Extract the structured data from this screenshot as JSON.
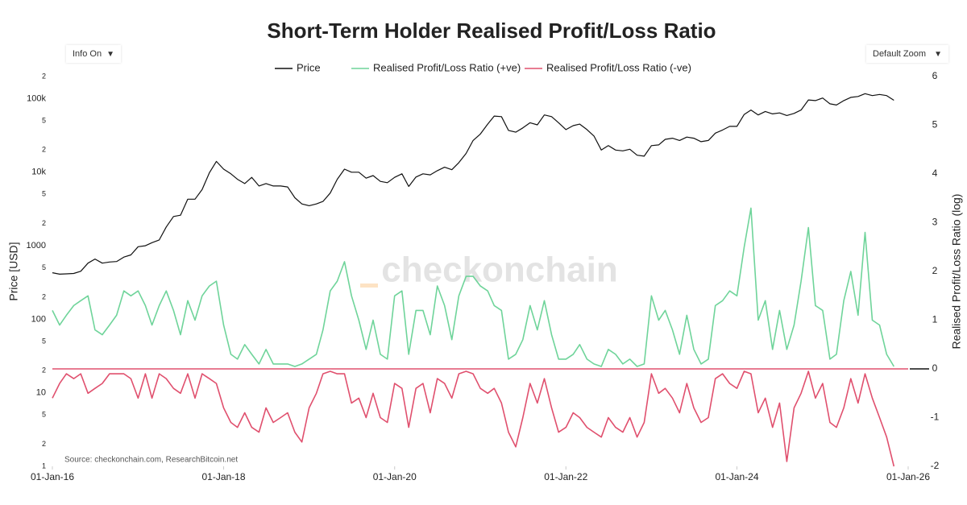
{
  "chart_data": {
    "type": "line",
    "title": "Short-Term Holder Realised Profit/Loss Ratio",
    "controls": {
      "info": "Info On",
      "zoom": "Default Zoom"
    },
    "ylabel": "Price [USD]",
    "y2label": "Realised Profit/Loss Ratio (log)",
    "source": "Source: checkonchain.com, ResearchBitcoin.net",
    "watermark": "checkonchain",
    "ylog": true,
    "xlim": [
      "2016-01-01",
      "2026-01-01"
    ],
    "xticks": [
      {
        "value": "2016-01-01",
        "label": "01-Jan-16"
      },
      {
        "value": "2018-01-01",
        "label": "01-Jan-18"
      },
      {
        "value": "2020-01-01",
        "label": "01-Jan-20"
      },
      {
        "value": "2022-01-01",
        "label": "01-Jan-22"
      },
      {
        "value": "2024-01-01",
        "label": "01-Jan-24"
      },
      {
        "value": "2026-01-01",
        "label": "01-Jan-26"
      }
    ],
    "ylim": [
      1,
      200000
    ],
    "yticks": [
      1,
      2,
      5,
      10,
      {
        "value": 20,
        "label": "2"
      },
      {
        "value": 50,
        "label": "5"
      },
      100,
      {
        "value": 200,
        "label": "2"
      },
      {
        "value": 500,
        "label": "5"
      },
      1000,
      {
        "value": 2000,
        "label": "2"
      },
      {
        "value": 5000,
        "label": "5"
      },
      {
        "value": 10000,
        "label": "10k"
      },
      {
        "value": 20000,
        "label": "2"
      },
      {
        "value": 50000,
        "label": "5"
      },
      {
        "value": 100000,
        "label": "100k"
      },
      {
        "value": 200000,
        "label": "2"
      }
    ],
    "y2lim": [
      -2,
      6
    ],
    "y2ticks": [
      -2,
      -1,
      0,
      1,
      2,
      3,
      4,
      5,
      6
    ],
    "x": [
      "2016-01-01",
      "2016-02-01",
      "2016-03-01",
      "2016-04-01",
      "2016-05-01",
      "2016-06-01",
      "2016-07-01",
      "2016-08-01",
      "2016-09-01",
      "2016-10-01",
      "2016-11-01",
      "2016-12-01",
      "2017-01-01",
      "2017-02-01",
      "2017-03-01",
      "2017-04-01",
      "2017-05-01",
      "2017-06-01",
      "2017-07-01",
      "2017-08-01",
      "2017-09-01",
      "2017-10-01",
      "2017-11-01",
      "2017-12-01",
      "2018-01-01",
      "2018-02-01",
      "2018-03-01",
      "2018-04-01",
      "2018-05-01",
      "2018-06-01",
      "2018-07-01",
      "2018-08-01",
      "2018-09-01",
      "2018-10-01",
      "2018-11-01",
      "2018-12-01",
      "2019-01-01",
      "2019-02-01",
      "2019-03-01",
      "2019-04-01",
      "2019-05-01",
      "2019-06-01",
      "2019-07-01",
      "2019-08-01",
      "2019-09-01",
      "2019-10-01",
      "2019-11-01",
      "2019-12-01",
      "2020-01-01",
      "2020-02-01",
      "2020-03-01",
      "2020-04-01",
      "2020-05-01",
      "2020-06-01",
      "2020-07-01",
      "2020-08-01",
      "2020-09-01",
      "2020-10-01",
      "2020-11-01",
      "2020-12-01",
      "2021-01-01",
      "2021-02-01",
      "2021-03-01",
      "2021-04-01",
      "2021-05-01",
      "2021-06-01",
      "2021-07-01",
      "2021-08-01",
      "2021-09-01",
      "2021-10-01",
      "2021-11-01",
      "2021-12-01",
      "2022-01-01",
      "2022-02-01",
      "2022-03-01",
      "2022-04-01",
      "2022-05-01",
      "2022-06-01",
      "2022-07-01",
      "2022-08-01",
      "2022-09-01",
      "2022-10-01",
      "2022-11-01",
      "2022-12-01",
      "2023-01-01",
      "2023-02-01",
      "2023-03-01",
      "2023-04-01",
      "2023-05-01",
      "2023-06-01",
      "2023-07-01",
      "2023-08-01",
      "2023-09-01",
      "2023-10-01",
      "2023-11-01",
      "2023-12-01",
      "2024-01-01",
      "2024-02-01",
      "2024-03-01",
      "2024-04-01",
      "2024-05-01",
      "2024-06-01",
      "2024-07-01",
      "2024-08-01",
      "2024-09-01",
      "2024-10-01",
      "2024-11-01",
      "2024-12-01",
      "2025-01-01",
      "2025-02-01",
      "2025-03-01",
      "2025-04-01",
      "2025-05-01",
      "2025-06-01",
      "2025-07-01",
      "2025-08-01",
      "2025-09-01",
      "2025-10-01",
      "2025-11-01"
    ],
    "series": [
      {
        "name": "Price",
        "color": "#111111",
        "axis": "y",
        "values": [
          430,
          410,
          415,
          420,
          450,
          580,
          660,
          580,
          600,
          610,
          700,
          750,
          970,
          1000,
          1100,
          1200,
          1800,
          2500,
          2600,
          4300,
          4300,
          5800,
          9800,
          14000,
          11000,
          9500,
          8000,
          7000,
          8500,
          6500,
          7000,
          6500,
          6500,
          6300,
          4500,
          3700,
          3500,
          3700,
          4000,
          5200,
          8000,
          11000,
          10000,
          10000,
          8300,
          9000,
          7500,
          7200,
          8500,
          9500,
          6400,
          8600,
          9500,
          9200,
          10500,
          11700,
          10800,
          13500,
          18000,
          27000,
          33000,
          45000,
          58000,
          57000,
          37000,
          35000,
          40000,
          47000,
          44000,
          60000,
          57000,
          47000,
          38000,
          43000,
          45000,
          38000,
          31000,
          20000,
          23000,
          20000,
          19500,
          20500,
          17000,
          16500,
          23000,
          23500,
          28000,
          29000,
          27000,
          30000,
          29000,
          26000,
          27000,
          34000,
          37500,
          42000,
          42000,
          61000,
          70000,
          60000,
          67000,
          62000,
          64000,
          59000,
          63000,
          70000,
          96000,
          94000,
          102000,
          85000,
          82000,
          94000,
          104000,
          107000,
          117000,
          110000,
          114000,
          110000,
          95000
        ]
      },
      {
        "name": "Realised Profit/Loss Ratio (+ve)",
        "color": "#6fd49a",
        "axis": "y2",
        "values": [
          1.2,
          0.9,
          1.1,
          1.3,
          1.4,
          1.5,
          0.8,
          0.7,
          0.9,
          1.1,
          1.6,
          1.5,
          1.6,
          1.3,
          0.9,
          1.3,
          1.6,
          1.2,
          0.7,
          1.4,
          1.0,
          1.5,
          1.7,
          1.8,
          0.9,
          0.3,
          0.2,
          0.5,
          0.3,
          0.1,
          0.4,
          0.1,
          0.1,
          0.1,
          0.05,
          0.1,
          0.2,
          0.3,
          0.8,
          1.6,
          1.8,
          2.2,
          1.5,
          1.0,
          0.4,
          1.0,
          0.3,
          0.2,
          1.5,
          1.6,
          0.3,
          1.2,
          1.2,
          0.7,
          1.7,
          1.3,
          0.6,
          1.5,
          1.9,
          1.9,
          1.7,
          1.6,
          1.3,
          1.2,
          0.2,
          0.3,
          0.6,
          1.3,
          0.8,
          1.4,
          0.7,
          0.2,
          0.2,
          0.3,
          0.5,
          0.2,
          0.1,
          0.05,
          0.4,
          0.3,
          0.1,
          0.2,
          0.05,
          0.1,
          1.5,
          1.0,
          1.2,
          0.8,
          0.3,
          1.1,
          0.4,
          0.1,
          0.2,
          1.3,
          1.4,
          1.6,
          1.5,
          2.5,
          3.3,
          1.0,
          1.4,
          0.4,
          1.2,
          0.4,
          0.9,
          1.8,
          2.9,
          1.3,
          1.2,
          0.2,
          0.3,
          1.4,
          2.0,
          1.1,
          2.8,
          1.0,
          0.9,
          0.3,
          0.05
        ]
      },
      {
        "name": "Realised Profit/Loss Ratio (-ve)",
        "color": "#e0506e",
        "axis": "y2",
        "values": [
          -0.6,
          -0.3,
          -0.1,
          -0.2,
          -0.1,
          -0.5,
          -0.4,
          -0.3,
          -0.1,
          -0.1,
          -0.1,
          -0.2,
          -0.6,
          -0.1,
          -0.6,
          -0.1,
          -0.2,
          -0.4,
          -0.5,
          -0.1,
          -0.6,
          -0.1,
          -0.2,
          -0.3,
          -0.8,
          -1.1,
          -1.2,
          -0.9,
          -1.2,
          -1.3,
          -0.8,
          -1.1,
          -1.0,
          -0.9,
          -1.3,
          -1.5,
          -0.8,
          -0.5,
          -0.1,
          -0.05,
          -0.1,
          -0.1,
          -0.7,
          -0.6,
          -1.0,
          -0.5,
          -1.0,
          -1.1,
          -0.3,
          -0.4,
          -1.2,
          -0.4,
          -0.3,
          -0.9,
          -0.2,
          -0.3,
          -0.6,
          -0.1,
          -0.05,
          -0.1,
          -0.4,
          -0.5,
          -0.4,
          -0.7,
          -1.3,
          -1.6,
          -1.0,
          -0.3,
          -0.7,
          -0.2,
          -0.8,
          -1.3,
          -1.2,
          -0.9,
          -1.0,
          -1.2,
          -1.3,
          -1.4,
          -1.0,
          -1.2,
          -1.3,
          -1.0,
          -1.4,
          -1.1,
          -0.1,
          -0.5,
          -0.4,
          -0.6,
          -0.9,
          -0.3,
          -0.8,
          -1.1,
          -1.0,
          -0.2,
          -0.1,
          -0.3,
          -0.4,
          -0.05,
          -0.1,
          -0.9,
          -0.6,
          -1.2,
          -0.7,
          -1.9,
          -0.8,
          -0.5,
          -0.05,
          -0.6,
          -0.3,
          -1.1,
          -1.2,
          -0.8,
          -0.2,
          -0.7,
          -0.1,
          -0.6,
          -1.0,
          -1.4,
          -2.0
        ]
      }
    ]
  }
}
